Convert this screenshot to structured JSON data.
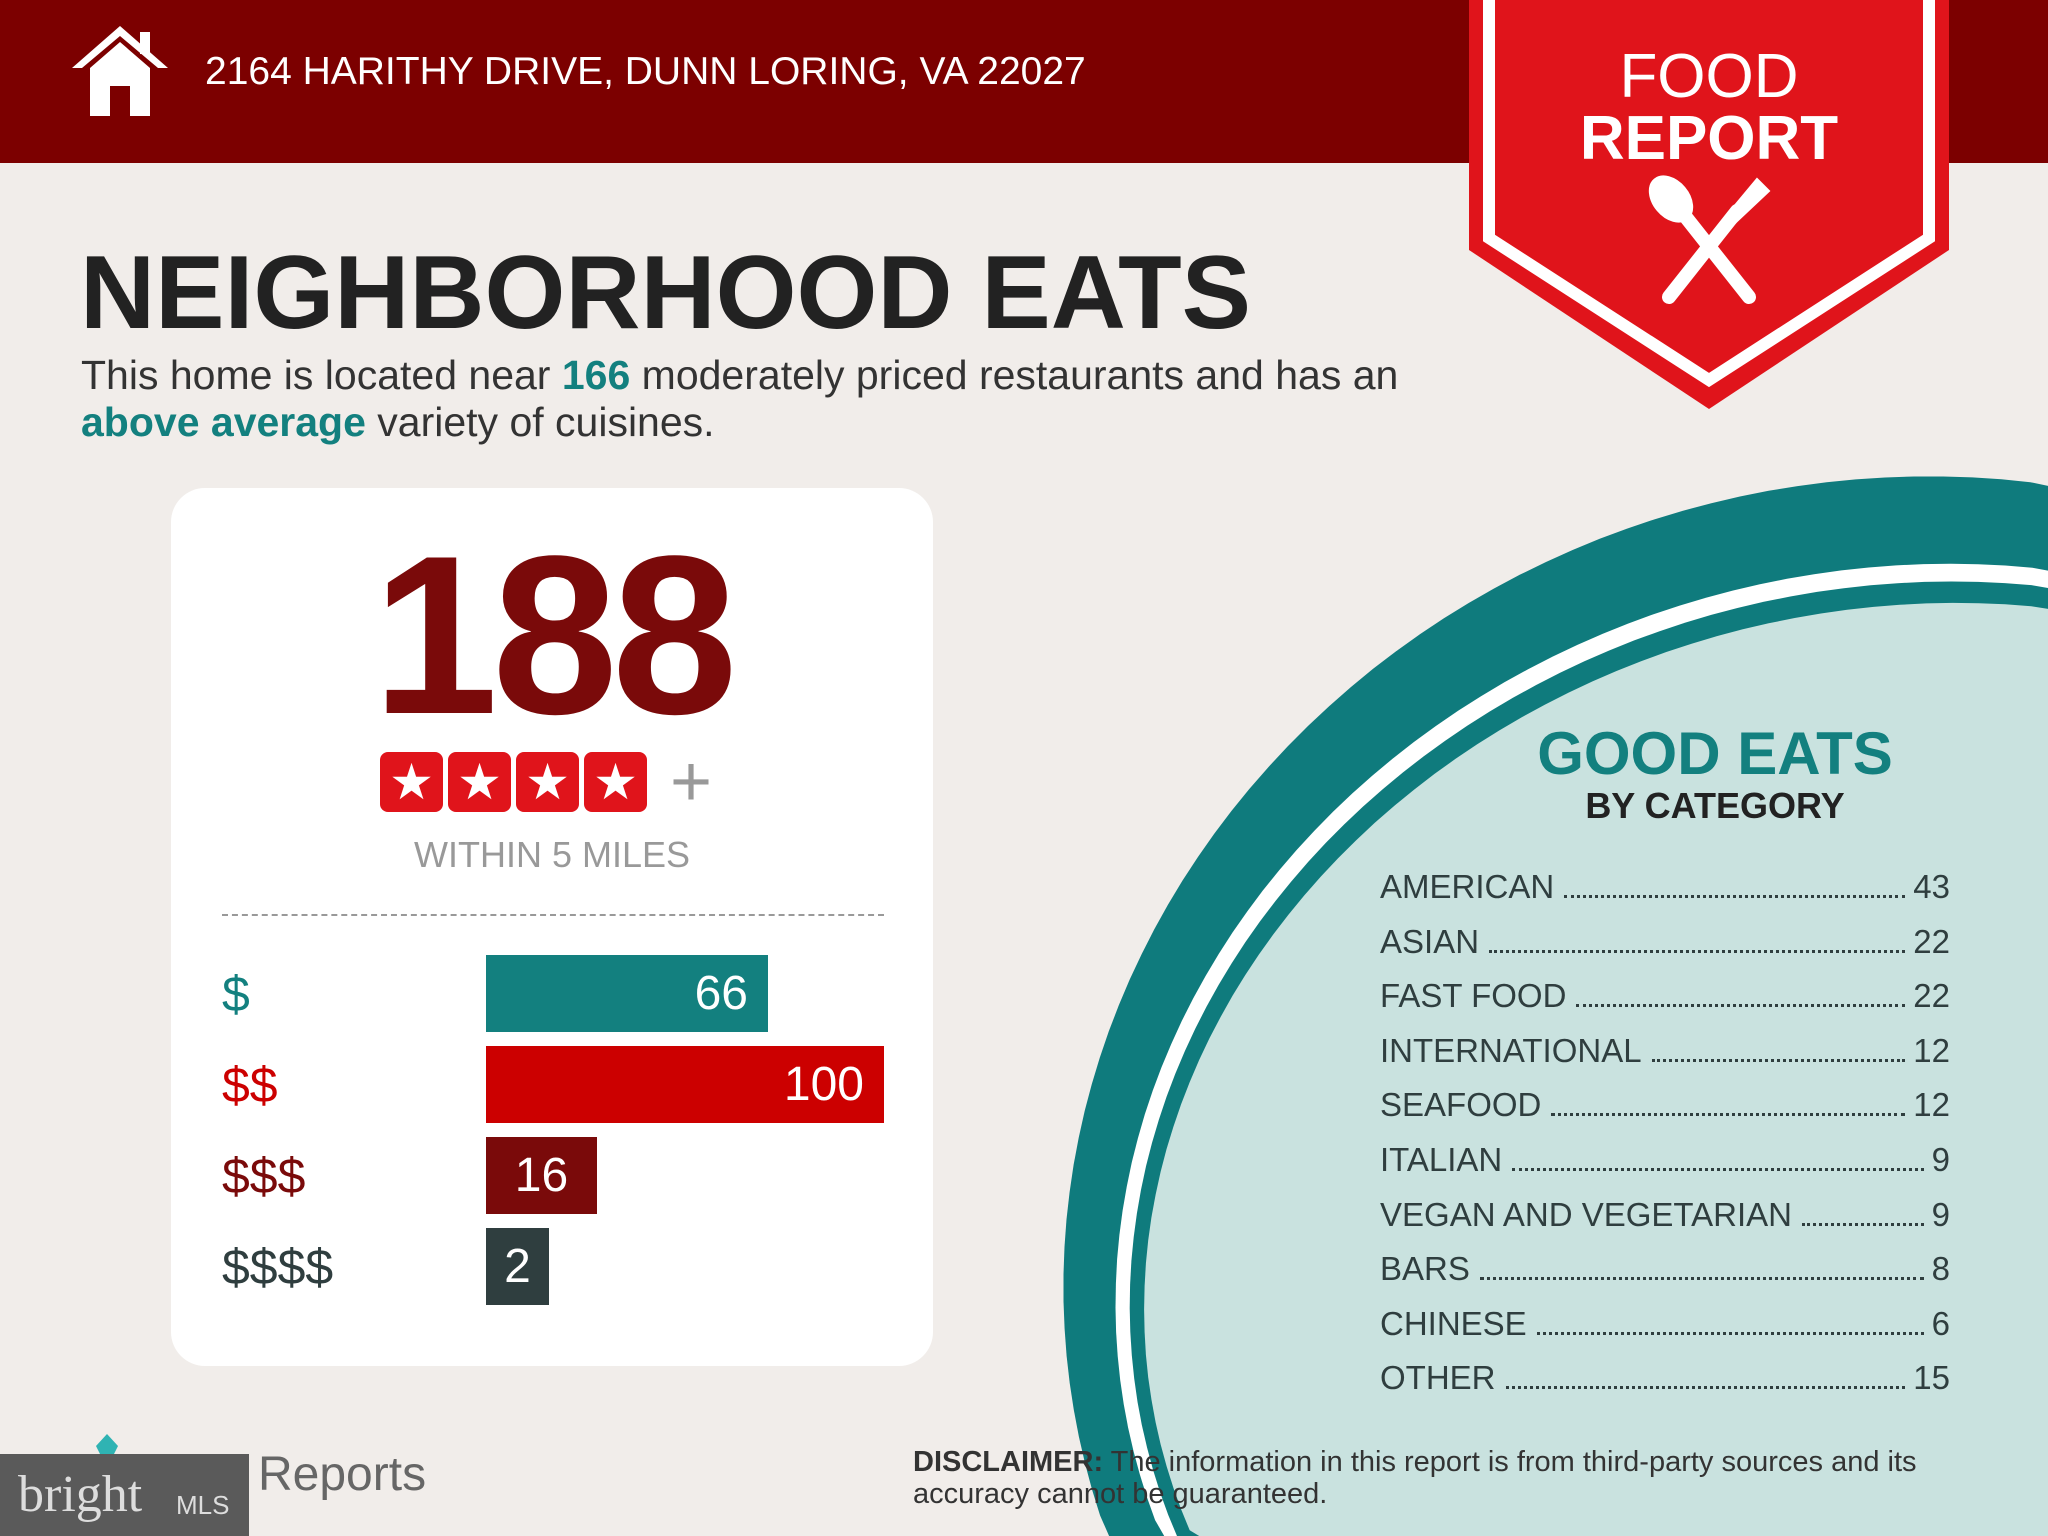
{
  "header": {
    "address": "2164 HARITHY DRIVE, DUNN LORING, VA 22027",
    "icon": "home-icon"
  },
  "badge": {
    "line1": "FOOD",
    "line2": "REPORT",
    "icon": "spoon-fork-icon"
  },
  "title": "NEIGHBORHOOD EATS",
  "subtitle": {
    "p1": "This home is located near ",
    "count": "166",
    "p2": " moderately priced restaurants and has an ",
    "variety": "above average",
    "p3": " variety of cuisines."
  },
  "summary": {
    "total": "188",
    "rating_stars": 4,
    "plus": "+",
    "within": "WITHIN 5 MILES"
  },
  "price_levels": [
    {
      "label": "$",
      "value": 66,
      "color": "#13807f"
    },
    {
      "label": "$$",
      "value": 100,
      "color": "#cc0000"
    },
    {
      "label": "$$$",
      "value": 16,
      "color": "#7a0a0a"
    },
    {
      "label": "$$$$",
      "value": 2,
      "color": "#2f3e3f"
    }
  ],
  "categories": {
    "title": "GOOD EATS",
    "subtitle": "BY CATEGORY",
    "items": [
      {
        "name": "AMERICAN",
        "count": "43"
      },
      {
        "name": "ASIAN",
        "count": "22"
      },
      {
        "name": "FAST FOOD",
        "count": "22"
      },
      {
        "name": "INTERNATIONAL",
        "count": "12"
      },
      {
        "name": "SEAFOOD",
        "count": "12"
      },
      {
        "name": "ITALIAN",
        "count": "9"
      },
      {
        "name": "VEGAN AND VEGETARIAN",
        "count": "9"
      },
      {
        "name": "BARS",
        "count": "8"
      },
      {
        "name": "CHINESE",
        "count": "6"
      },
      {
        "name": "OTHER",
        "count": "15"
      }
    ]
  },
  "disclaimer": {
    "label": "DISCLAIMER:",
    "text": " The information in this report is from third-party sources and its accuracy cannot be guaranteed."
  },
  "footer": {
    "reports": "Reports",
    "logo": "bright",
    "logo_suffix": "MLS"
  },
  "colors": {
    "header": "#7c0000",
    "badge": "#e0141b",
    "teal": "#13807f",
    "plate": "#c9e2df"
  }
}
